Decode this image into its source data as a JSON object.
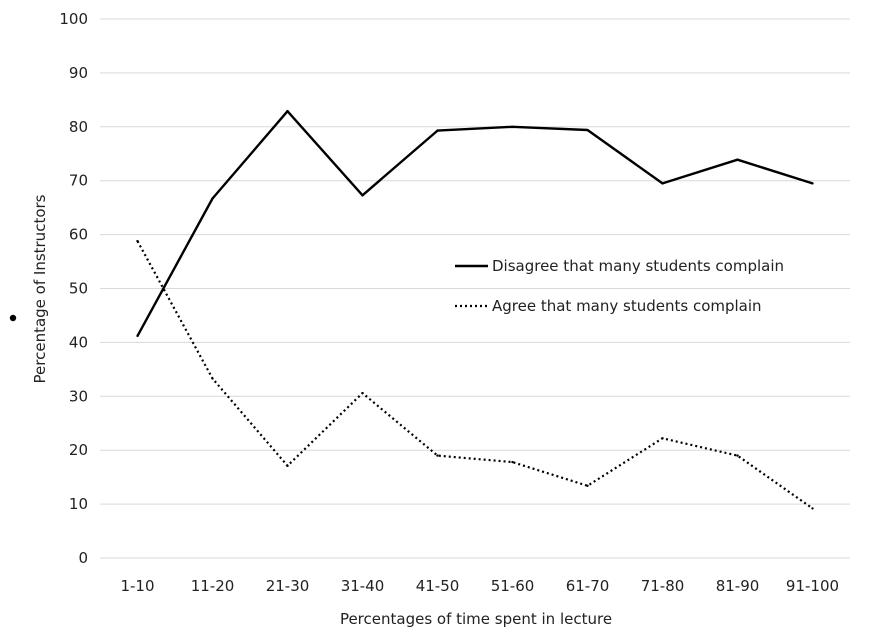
{
  "chart_data": {
    "type": "line",
    "title": "",
    "xlabel": "Percentages of time spent in lecture",
    "ylabel": "Percentage of Instructors",
    "categories": [
      "1-10",
      "11-20",
      "21-30",
      "31-40",
      "41-50",
      "51-60",
      "61-70",
      "71-80",
      "81-90",
      "91-100"
    ],
    "ylim": [
      0,
      100
    ],
    "yticks": [
      0,
      10,
      20,
      30,
      40,
      50,
      60,
      70,
      80,
      90,
      100
    ],
    "grid": true,
    "legend_position": "right-middle",
    "series": [
      {
        "name": "Disagree that many students complain",
        "style": "solid",
        "color": "#000000",
        "values": [
          41.2,
          66.7,
          82.9,
          67.3,
          79.3,
          80.0,
          79.4,
          69.5,
          73.9,
          69.5
        ]
      },
      {
        "name": "Agree that many students complain",
        "style": "dotted",
        "color": "#000000",
        "values": [
          58.8,
          33.3,
          17.1,
          30.6,
          19.0,
          17.8,
          13.4,
          22.2,
          19.0,
          9.2
        ]
      }
    ]
  }
}
